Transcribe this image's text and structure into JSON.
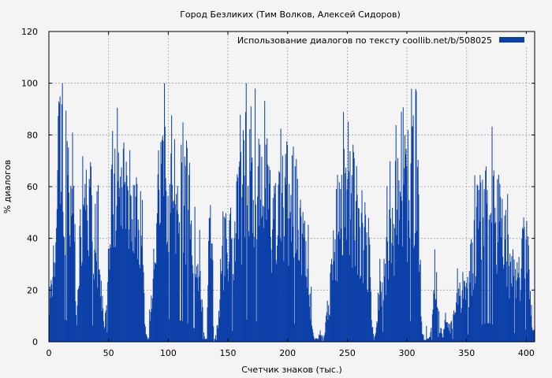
{
  "chart_data": {
    "type": "bar",
    "title": "Город Безликих (Тим Волков, Алексей Сидоров)",
    "xlabel": "Счетчик знаков (тыс.)",
    "ylabel": "% диалогов",
    "xlim": [
      0,
      407
    ],
    "ylim": [
      0,
      120
    ],
    "xticks": [
      0,
      50,
      100,
      150,
      200,
      250,
      300,
      350,
      400
    ],
    "yticks": [
      0,
      20,
      40,
      60,
      80,
      100,
      120
    ],
    "grid": true,
    "legend_position": "top-right",
    "series": [
      {
        "name": "Использование диалогов по тексту  coollib.net/b/508025",
        "color": "#0a3fa8",
        "profile": [
          [
            0,
            10
          ],
          [
            3,
            35
          ],
          [
            6,
            82
          ],
          [
            8,
            92
          ],
          [
            10,
            88
          ],
          [
            13,
            85
          ],
          [
            16,
            80
          ],
          [
            20,
            75
          ],
          [
            23,
            10
          ],
          [
            25,
            40
          ],
          [
            28,
            82
          ],
          [
            31,
            75
          ],
          [
            34,
            70
          ],
          [
            37,
            62
          ],
          [
            40,
            55
          ],
          [
            43,
            35
          ],
          [
            46,
            5
          ],
          [
            48,
            30
          ],
          [
            51,
            70
          ],
          [
            54,
            82
          ],
          [
            57,
            88
          ],
          [
            60,
            85
          ],
          [
            63,
            80
          ],
          [
            66,
            75
          ],
          [
            69,
            68
          ],
          [
            72,
            60
          ],
          [
            75,
            58
          ],
          [
            78,
            55
          ],
          [
            80,
            8
          ],
          [
            83,
            1
          ],
          [
            85,
            12
          ],
          [
            88,
            40
          ],
          [
            91,
            70
          ],
          [
            94,
            78
          ],
          [
            97,
            85
          ],
          [
            100,
            88
          ],
          [
            103,
            82
          ],
          [
            106,
            80
          ],
          [
            110,
            82
          ],
          [
            113,
            78
          ],
          [
            116,
            70
          ],
          [
            119,
            62
          ],
          [
            122,
            50
          ],
          [
            125,
            40
          ],
          [
            128,
            20
          ],
          [
            130,
            2
          ],
          [
            132,
            1
          ],
          [
            133,
            25
          ],
          [
            134,
            70
          ],
          [
            136,
            58
          ],
          [
            138,
            1
          ],
          [
            140,
            5
          ],
          [
            142,
            12
          ],
          [
            145,
            35
          ],
          [
            148,
            62
          ],
          [
            151,
            55
          ],
          [
            154,
            38
          ],
          [
            157,
            60
          ],
          [
            160,
            72
          ],
          [
            163,
            80
          ],
          [
            166,
            86
          ],
          [
            169,
            88
          ],
          [
            172,
            82
          ],
          [
            175,
            75
          ],
          [
            178,
            70
          ],
          [
            181,
            78
          ],
          [
            184,
            72
          ],
          [
            187,
            62
          ],
          [
            190,
            58
          ],
          [
            193,
            66
          ],
          [
            196,
            70
          ],
          [
            199,
            74
          ],
          [
            202,
            72
          ],
          [
            205,
            70
          ],
          [
            208,
            66
          ],
          [
            211,
            55
          ],
          [
            214,
            45
          ],
          [
            217,
            35
          ],
          [
            220,
            10
          ],
          [
            222,
            2
          ],
          [
            225,
            1
          ],
          [
            227,
            5
          ],
          [
            230,
            1
          ],
          [
            233,
            15
          ],
          [
            235,
            25
          ],
          [
            238,
            52
          ],
          [
            241,
            60
          ],
          [
            244,
            78
          ],
          [
            247,
            85
          ],
          [
            250,
            80
          ],
          [
            253,
            75
          ],
          [
            256,
            70
          ],
          [
            259,
            65
          ],
          [
            262,
            58
          ],
          [
            265,
            50
          ],
          [
            268,
            48
          ],
          [
            270,
            10
          ],
          [
            272,
            1
          ],
          [
            274,
            8
          ],
          [
            277,
            30
          ],
          [
            280,
            40
          ],
          [
            283,
            48
          ],
          [
            286,
            58
          ],
          [
            290,
            68
          ],
          [
            294,
            72
          ],
          [
            298,
            76
          ],
          [
            302,
            80
          ],
          [
            306,
            82
          ],
          [
            309,
            78
          ],
          [
            312,
            10
          ],
          [
            314,
            1
          ],
          [
            316,
            1
          ],
          [
            319,
            2
          ],
          [
            321,
            10
          ],
          [
            323,
            38
          ],
          [
            325,
            30
          ],
          [
            327,
            8
          ],
          [
            330,
            2
          ],
          [
            332,
            12
          ],
          [
            335,
            6
          ],
          [
            338,
            10
          ],
          [
            341,
            18
          ],
          [
            344,
            25
          ],
          [
            347,
            28
          ],
          [
            350,
            22
          ],
          [
            353,
            40
          ],
          [
            356,
            50
          ],
          [
            359,
            60
          ],
          [
            362,
            66
          ],
          [
            365,
            70
          ],
          [
            368,
            72
          ],
          [
            371,
            68
          ],
          [
            374,
            60
          ],
          [
            377,
            62
          ],
          [
            380,
            55
          ],
          [
            383,
            48
          ],
          [
            386,
            40
          ],
          [
            389,
            35
          ],
          [
            392,
            30
          ],
          [
            395,
            42
          ],
          [
            398,
            50
          ],
          [
            401,
            45
          ],
          [
            404,
            15
          ],
          [
            406,
            5
          ]
        ]
      }
    ]
  }
}
